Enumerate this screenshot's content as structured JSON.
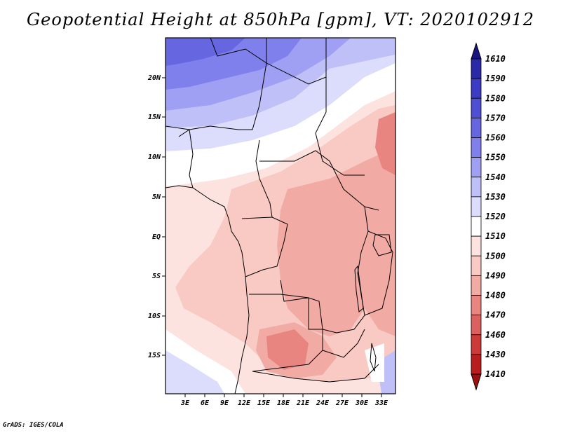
{
  "title": "Geopotential Height at 850hPa [gpm], VT: 2020102912",
  "credit": "GrADS: IGES/COLA",
  "map": {
    "lon_ticks": [
      "3E",
      "6E",
      "9E",
      "12E",
      "15E",
      "18E",
      "21E",
      "24E",
      "27E",
      "30E",
      "33E"
    ],
    "lat_ticks": [
      "20N",
      "15N",
      "10N",
      "5N",
      "EQ",
      "5S",
      "10S",
      "15S"
    ]
  },
  "colorbar": {
    "levels": [
      "1610",
      "1590",
      "1580",
      "1570",
      "1560",
      "1550",
      "1540",
      "1530",
      "1520",
      "1510",
      "1500",
      "1490",
      "1480",
      "1470",
      "1460",
      "1430",
      "1410"
    ],
    "colors": [
      "#1a1580",
      "#2a2aa8",
      "#3b3bc4",
      "#4f4fd4",
      "#6666e0",
      "#8080ec",
      "#9f9ff4",
      "#c0c0f8",
      "#dcdcfc",
      "#ffffff",
      "#fde3e0",
      "#f9c9c4",
      "#f2aaa4",
      "#e88580",
      "#dd6060",
      "#cc3a3a",
      "#b81e1e",
      "#9c1010"
    ]
  }
}
